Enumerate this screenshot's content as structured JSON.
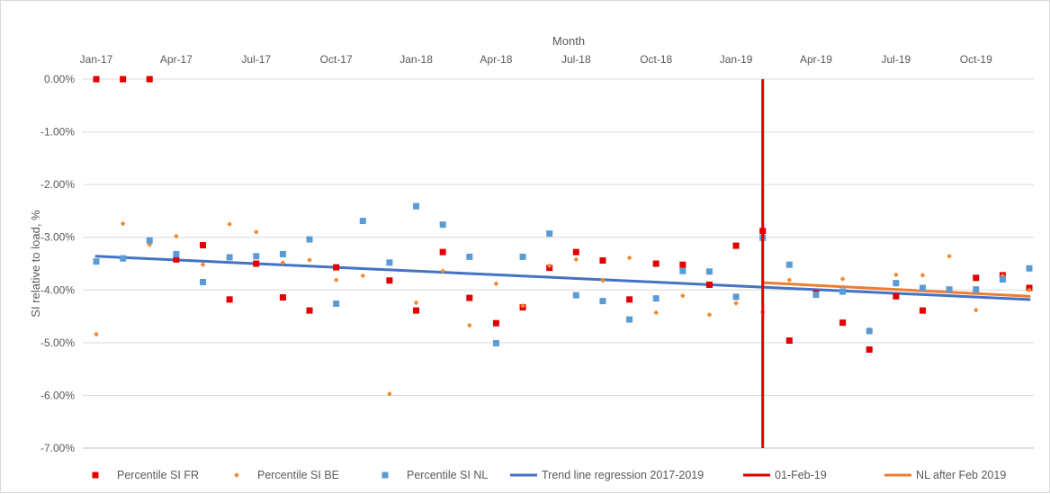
{
  "chart_data": {
    "type": "scatter",
    "title": "",
    "xlabel": "Month",
    "ylabel": "SI relative to load, %",
    "x_axis_position": "top",
    "xlim": [
      "2017-01",
      "2019-12"
    ],
    "ylim": [
      -7.0,
      0.0
    ],
    "x_ticks": [
      "Jan-17",
      "Apr-17",
      "Jul-17",
      "Oct-17",
      "Jan-18",
      "Apr-18",
      "Jul-18",
      "Oct-18",
      "Jan-19",
      "Apr-19",
      "Jul-19",
      "Oct-19"
    ],
    "y_ticks": [
      "0.00%",
      "-1.00%",
      "-2.00%",
      "-3.00%",
      "-4.00%",
      "-5.00%",
      "-6.00%",
      "-7.00%"
    ],
    "grid": "horizontal",
    "legend_position": "bottom",
    "x": [
      "2017-01",
      "2017-02",
      "2017-03",
      "2017-04",
      "2017-05",
      "2017-06",
      "2017-07",
      "2017-08",
      "2017-09",
      "2017-10",
      "2017-11",
      "2017-12",
      "2018-01",
      "2018-02",
      "2018-03",
      "2018-04",
      "2018-05",
      "2018-06",
      "2018-07",
      "2018-08",
      "2018-09",
      "2018-10",
      "2018-11",
      "2018-12",
      "2019-01",
      "2019-02",
      "2019-03",
      "2019-04",
      "2019-05",
      "2019-06",
      "2019-07",
      "2019-08",
      "2019-09",
      "2019-10",
      "2019-11",
      "2019-12"
    ],
    "series": [
      {
        "name": "Percentile SI FR",
        "marker": "square",
        "color": "#e00000",
        "values": [
          0.0,
          0.0,
          0.0,
          -3.42,
          -3.15,
          -4.18,
          -3.5,
          -4.14,
          -4.39,
          -3.57,
          null,
          -3.82,
          -4.39,
          -3.28,
          -4.15,
          -4.63,
          -4.33,
          -3.58,
          -3.28,
          -3.44,
          -4.18,
          -3.5,
          -3.52,
          -3.9,
          -3.16,
          -2.88,
          -4.96,
          -4.06,
          -4.62,
          -5.13,
          -4.12,
          -4.39,
          null,
          -3.77,
          -3.72,
          -3.96
        ]
      },
      {
        "name": "Percentile SI BE",
        "marker": "diamond",
        "color": "#f08a30",
        "values": [
          -4.84,
          -2.74,
          -3.14,
          -2.98,
          -3.52,
          -2.75,
          -2.9,
          -3.48,
          -3.43,
          -3.81,
          -3.73,
          -5.97,
          -4.24,
          -3.64,
          -4.67,
          -3.88,
          -4.3,
          -3.54,
          -3.42,
          -3.82,
          -3.39,
          -4.43,
          -4.11,
          -4.47,
          -4.25,
          -4.42,
          -3.81,
          null,
          -3.79,
          -4.75,
          -3.71,
          -3.72,
          -3.36,
          -4.38,
          -3.73,
          -4.0
        ]
      },
      {
        "name": "Percentile SI NL",
        "marker": "square",
        "color": "#5b9bd5",
        "values": [
          -3.46,
          -3.4,
          -3.06,
          -3.32,
          -3.85,
          -3.38,
          -3.36,
          -3.32,
          -3.04,
          -4.26,
          -2.69,
          -3.48,
          -2.41,
          -2.76,
          -3.37,
          -5.01,
          -3.37,
          -2.93,
          -4.1,
          -4.21,
          -4.56,
          -4.16,
          -3.64,
          -3.65,
          -4.13,
          -3.01,
          -3.52,
          -4.09,
          -4.03,
          -4.78,
          -3.87,
          -3.96,
          -3.99,
          -3.99,
          -3.8,
          -3.59
        ]
      }
    ],
    "lines": [
      {
        "name": "Trend line regression 2017-2019",
        "color": "#4472c4",
        "x": [
          "2017-01",
          "2019-12"
        ],
        "values": [
          -3.36,
          -4.18
        ]
      },
      {
        "name": "NL after Feb 2019",
        "color": "#ed7d31",
        "x": [
          "2019-02",
          "2019-12"
        ],
        "values": [
          -3.86,
          -4.12
        ]
      }
    ],
    "vertical_line": {
      "name": "01-Feb-19",
      "color": "#e00000",
      "x": "2019-02-01"
    },
    "legend": [
      {
        "label": "Percentile SI FR",
        "kind": "square",
        "color": "#e00000"
      },
      {
        "label": "Percentile SI BE",
        "kind": "diamond",
        "color": "#f08a30"
      },
      {
        "label": "Percentile SI NL",
        "kind": "square",
        "color": "#5b9bd5"
      },
      {
        "label": "Trend line regression 2017-2019",
        "kind": "line",
        "color": "#4472c4"
      },
      {
        "label": "01-Feb-19",
        "kind": "line",
        "color": "#e00000"
      },
      {
        "label": "NL after Feb 2019",
        "kind": "line",
        "color": "#ed7d31"
      }
    ]
  }
}
